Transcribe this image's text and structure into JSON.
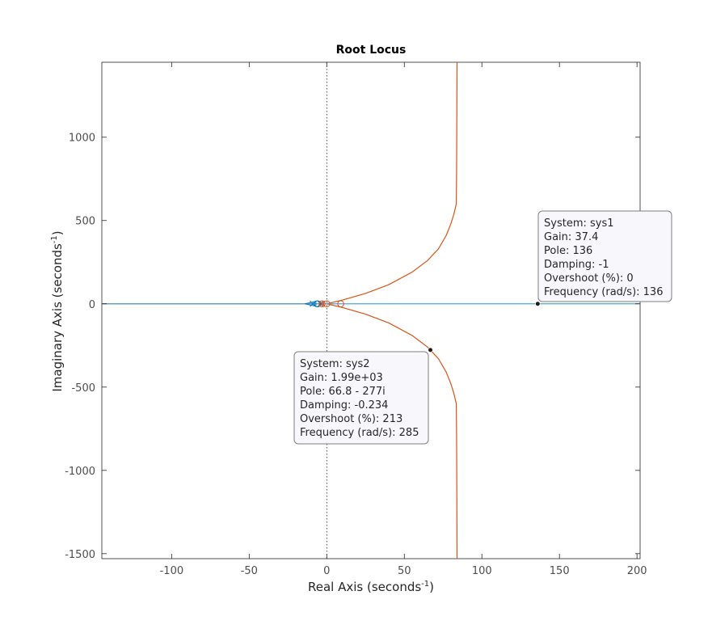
{
  "chart_data": {
    "type": "line",
    "title": "Root Locus",
    "xlabel": {
      "main": "Real Axis (seconds",
      "sup": "-1",
      "end": ")"
    },
    "ylabel": {
      "main": "Imaginary Axis (seconds",
      "sup": "-1",
      "end": ")"
    },
    "xlim": [
      -145,
      202
    ],
    "ylim": [
      -1530,
      1450
    ],
    "xticks": [
      -100,
      -50,
      0,
      50,
      100,
      150,
      200
    ],
    "xtick_labels": [
      "-100",
      "-50",
      "0",
      "50",
      "100",
      "150",
      "200"
    ],
    "yticks": [
      -1500,
      -1000,
      -500,
      0,
      500,
      1000
    ],
    "ytick_labels": [
      "-1500",
      "-1000",
      "-500",
      "0",
      "500",
      "1000"
    ],
    "grid": false,
    "colors": {
      "sys1": "#0072BD",
      "sys1_line": "#4da6df",
      "sys2": "#D95319",
      "axes": "#262626",
      "zero_line": "#262626"
    },
    "series": [
      {
        "name": "sys1",
        "branches": [
          [
            [
              -145,
              0
            ],
            [
              -14,
              0
            ]
          ],
          [
            [
              -14,
              0
            ],
            [
              -9,
              0
            ],
            [
              -4,
              0
            ]
          ],
          [
            [
              -9,
              0
            ],
            [
              -4,
              0
            ],
            [
              30,
              0
            ],
            [
              80,
              0
            ],
            [
              136,
              0
            ],
            [
              202,
              0
            ]
          ]
        ],
        "poles": [
          [
            -9,
            0
          ],
          [
            -4,
            0
          ]
        ],
        "zeros": [
          [
            -6,
            0
          ]
        ]
      },
      {
        "name": "sys2",
        "branches": [
          [
            [
              -145,
              0
            ],
            [
              -6,
              0
            ]
          ],
          [
            [
              0,
              0
            ],
            [
              10,
              22
            ],
            [
              25,
              62
            ],
            [
              40,
              115
            ],
            [
              55,
              190
            ],
            [
              65,
              260
            ],
            [
              72,
              330
            ],
            [
              77,
              410
            ],
            [
              80,
              480
            ],
            [
              82,
              540
            ],
            [
              83.5,
              600
            ],
            [
              83.7,
              800
            ],
            [
              83.8,
              1000
            ],
            [
              84,
              1450
            ]
          ],
          [
            [
              0,
              0
            ],
            [
              10,
              -22
            ],
            [
              25,
              -62
            ],
            [
              40,
              -115
            ],
            [
              55,
              -190
            ],
            [
              65,
              -260
            ],
            [
              72,
              -330
            ],
            [
              77,
              -410
            ],
            [
              80,
              -480
            ],
            [
              82,
              -540
            ],
            [
              83.5,
              -600
            ],
            [
              83.7,
              -800
            ],
            [
              83.8,
              -1000
            ],
            [
              84,
              -1530
            ]
          ]
        ],
        "poles": [
          [
            -3,
            0
          ]
        ],
        "zeros": [
          [
            -3,
            0
          ],
          [
            0,
            0
          ],
          [
            9,
            0
          ]
        ]
      }
    ],
    "datatips": [
      {
        "series": "sys1",
        "point": [
          136,
          0
        ],
        "lines": [
          "System: sys1",
          "Gain: 37.4",
          "Pole: 136",
          "Damping: -1",
          "Overshoot (%): 0",
          "Frequency (rad/s): 136"
        ]
      },
      {
        "series": "sys2",
        "point": [
          66.8,
          -277
        ],
        "lines": [
          "System: sys2",
          "Gain: 1.99e+03",
          "Pole: 66.8 - 277i",
          "Damping: -0.234",
          "Overshoot (%): 213",
          "Frequency (rad/s): 285"
        ]
      }
    ]
  }
}
